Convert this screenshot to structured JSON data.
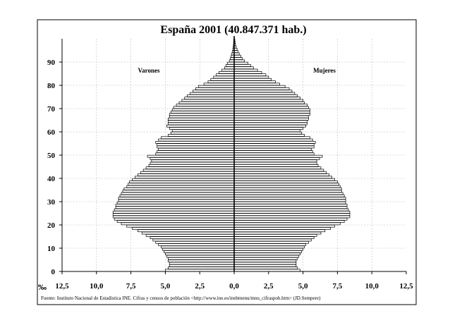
{
  "chart_data": {
    "type": "bar",
    "orientation": "horizontal",
    "layout": "population-pyramid",
    "title": "España 2001 (40.847.371 hab.)",
    "unit_label": "‰",
    "x_ticks": [
      "12,5",
      "10,0",
      "7,5",
      "5,0",
      "2,5",
      "0,0",
      "2,5",
      "5,0",
      "7,5",
      "10,0",
      "12,5"
    ],
    "xlim": [
      -12.5,
      12.5
    ],
    "y_ticks": [
      "0",
      "10",
      "20",
      "30",
      "40",
      "50",
      "60",
      "70",
      "80",
      "90"
    ],
    "ylim": [
      0,
      100
    ],
    "grid": true,
    "legend": "none",
    "colors": {
      "bar_fill": "#ffffff",
      "bar_stroke": "#000000",
      "grid": "#bdbdbd",
      "axis": "#000000"
    },
    "left_series": {
      "name": "Varones",
      "ages": [
        0,
        1,
        2,
        3,
        4,
        5,
        6,
        7,
        8,
        9,
        10,
        11,
        12,
        13,
        14,
        15,
        16,
        17,
        18,
        19,
        20,
        21,
        22,
        23,
        24,
        25,
        26,
        27,
        28,
        29,
        30,
        31,
        32,
        33,
        34,
        35,
        36,
        37,
        38,
        39,
        40,
        41,
        42,
        43,
        44,
        45,
        46,
        47,
        48,
        49,
        50,
        51,
        52,
        53,
        54,
        55,
        56,
        57,
        58,
        59,
        60,
        61,
        62,
        63,
        64,
        65,
        66,
        67,
        68,
        69,
        70,
        71,
        72,
        73,
        74,
        75,
        76,
        77,
        78,
        79,
        80,
        81,
        82,
        83,
        84,
        85,
        86,
        87,
        88,
        89,
        90,
        91,
        92,
        93,
        94,
        95,
        96,
        97,
        98,
        99
      ],
      "values": [
        5.0,
        4.8,
        4.7,
        4.7,
        4.8,
        4.8,
        4.9,
        5.0,
        5.1,
        5.2,
        5.3,
        5.5,
        5.7,
        5.9,
        6.1,
        6.4,
        6.7,
        7.0,
        7.4,
        7.8,
        8.2,
        8.5,
        8.7,
        8.8,
        8.8,
        8.8,
        8.7,
        8.6,
        8.6,
        8.5,
        8.4,
        8.4,
        8.3,
        8.2,
        8.1,
        8.0,
        7.8,
        7.7,
        7.6,
        7.4,
        7.2,
        7.0,
        6.8,
        6.6,
        6.4,
        6.2,
        6.1,
        6.0,
        6.1,
        6.3,
        5.7,
        5.6,
        5.5,
        5.6,
        5.6,
        5.7,
        5.5,
        5.3,
        4.8,
        4.6,
        4.5,
        4.7,
        4.9,
        4.8,
        4.8,
        4.8,
        4.7,
        4.7,
        4.6,
        4.5,
        4.4,
        4.2,
        4.0,
        3.8,
        3.6,
        3.4,
        3.2,
        3.0,
        2.8,
        2.6,
        2.2,
        1.9,
        1.7,
        1.5,
        1.3,
        1.1,
        0.9,
        0.7,
        0.6,
        0.5,
        0.35,
        0.28,
        0.22,
        0.17,
        0.13,
        0.1,
        0.07,
        0.05,
        0.04,
        0.03
      ]
    },
    "right_series": {
      "name": "Mujeres",
      "ages": [
        0,
        1,
        2,
        3,
        4,
        5,
        6,
        7,
        8,
        9,
        10,
        11,
        12,
        13,
        14,
        15,
        16,
        17,
        18,
        19,
        20,
        21,
        22,
        23,
        24,
        25,
        26,
        27,
        28,
        29,
        30,
        31,
        32,
        33,
        34,
        35,
        36,
        37,
        38,
        39,
        40,
        41,
        42,
        43,
        44,
        45,
        46,
        47,
        48,
        49,
        50,
        51,
        52,
        53,
        54,
        55,
        56,
        57,
        58,
        59,
        60,
        61,
        62,
        63,
        64,
        65,
        66,
        67,
        68,
        69,
        70,
        71,
        72,
        73,
        74,
        75,
        76,
        77,
        78,
        79,
        80,
        81,
        82,
        83,
        84,
        85,
        86,
        87,
        88,
        89,
        90,
        91,
        92,
        93,
        94,
        95,
        96,
        97,
        98,
        99
      ],
      "values": [
        4.8,
        4.6,
        4.5,
        4.5,
        4.5,
        4.6,
        4.7,
        4.8,
        4.9,
        5.0,
        5.1,
        5.2,
        5.4,
        5.6,
        5.8,
        6.0,
        6.3,
        6.6,
        7.0,
        7.3,
        7.7,
        8.0,
        8.2,
        8.4,
        8.4,
        8.4,
        8.3,
        8.2,
        8.2,
        8.1,
        8.1,
        8.1,
        8.0,
        7.9,
        7.8,
        7.8,
        7.7,
        7.6,
        7.5,
        7.3,
        7.1,
        6.9,
        6.7,
        6.5,
        6.3,
        6.1,
        6.0,
        6.0,
        6.2,
        6.4,
        5.8,
        5.7,
        5.6,
        5.8,
        5.8,
        5.9,
        5.7,
        5.5,
        5.1,
        4.9,
        4.8,
        5.0,
        5.2,
        5.3,
        5.3,
        5.4,
        5.4,
        5.5,
        5.5,
        5.5,
        5.4,
        5.3,
        5.1,
        5.0,
        4.8,
        4.6,
        4.4,
        4.2,
        4.0,
        3.7,
        3.3,
        3.0,
        2.7,
        2.5,
        2.3,
        2.0,
        1.7,
        1.4,
        1.2,
        1.0,
        0.75,
        0.6,
        0.48,
        0.37,
        0.28,
        0.21,
        0.15,
        0.1,
        0.07,
        0.05
      ]
    },
    "annotations": [
      {
        "text": "Varones"
      },
      {
        "text": "Mujeres"
      }
    ],
    "source": "Fuente: Instituto Nacional de Estadística INE. Cifras y censos de población <http://www.ine.es/inebmenu/mnu_cifraspob.htm> (JD.Sempere)"
  }
}
